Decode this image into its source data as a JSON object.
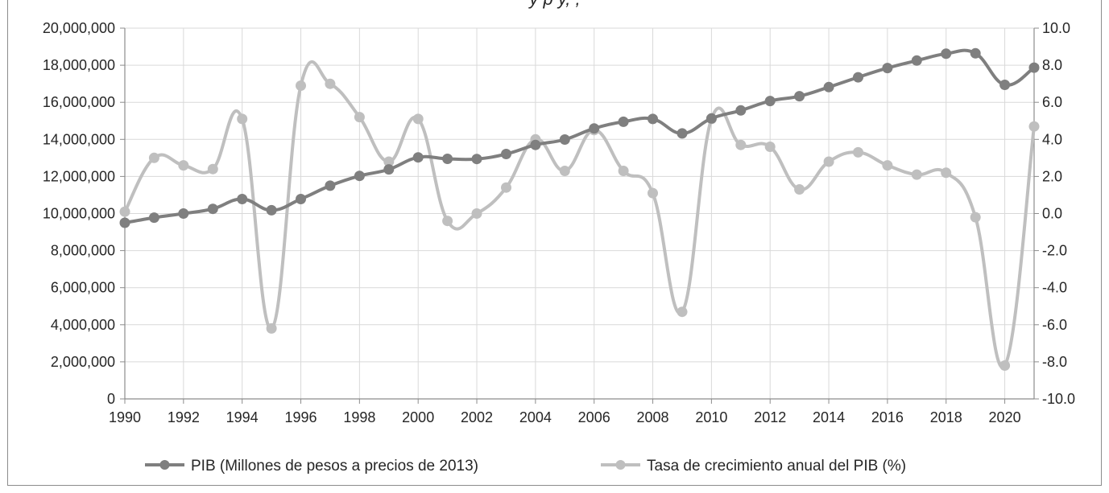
{
  "chart_data": {
    "type": "line",
    "title_fragment": "y p          y, ,",
    "x": [
      1990,
      1991,
      1992,
      1993,
      1994,
      1995,
      1996,
      1997,
      1998,
      1999,
      2000,
      2001,
      2002,
      2003,
      2004,
      2005,
      2006,
      2007,
      2008,
      2009,
      2010,
      2011,
      2012,
      2013,
      2014,
      2015,
      2016,
      2017,
      2018,
      2019,
      2020,
      2021
    ],
    "x_tick_labels": [
      "1990",
      "1992",
      "1994",
      "1996",
      "1998",
      "2000",
      "2002",
      "2004",
      "2006",
      "2008",
      "2010",
      "2012",
      "2014",
      "2016",
      "2018",
      "2020"
    ],
    "y_left_ticks": [
      "0",
      "2,000,000",
      "4,000,000",
      "6,000,000",
      "8,000,000",
      "10,000,000",
      "12,000,000",
      "14,000,000",
      "16,000,000",
      "18,000,000",
      "20,000,000"
    ],
    "y_right_ticks": [
      "-10.0",
      "-8.0",
      "-6.0",
      "-4.0",
      "-2.0",
      "0.0",
      "2.0",
      "4.0",
      "6.0",
      "8.0",
      "10.0"
    ],
    "y_left_lim": [
      0,
      20000000
    ],
    "y_right_lim": [
      -10,
      10
    ],
    "grid": true,
    "legend_position": "bottom",
    "series": [
      {
        "name": "PIB (Millones de pesos a precios de 2013)",
        "axis": "left",
        "color": "#7f7f7f",
        "values": [
          9500000,
          9780000,
          10000000,
          10250000,
          10780000,
          10180000,
          10780000,
          11500000,
          12030000,
          12380000,
          13030000,
          12950000,
          12940000,
          13210000,
          13700000,
          13990000,
          14590000,
          14950000,
          15100000,
          14320000,
          15130000,
          15560000,
          16070000,
          16330000,
          16820000,
          17350000,
          17850000,
          18250000,
          18620000,
          18640000,
          16940000,
          17870000
        ]
      },
      {
        "name": "Tasa de crecimiento anual del PIB (%)",
        "axis": "right",
        "color": "#bfbfbf",
        "values": [
          0.1,
          3.0,
          2.6,
          2.4,
          5.1,
          -6.2,
          6.9,
          7.0,
          5.2,
          2.8,
          5.1,
          -0.4,
          0.0,
          1.4,
          4.0,
          2.3,
          4.5,
          2.3,
          1.1,
          -5.3,
          5.1,
          3.7,
          3.6,
          1.3,
          2.8,
          3.3,
          2.6,
          2.1,
          2.2,
          -0.2,
          -8.2,
          4.7
        ]
      }
    ]
  }
}
